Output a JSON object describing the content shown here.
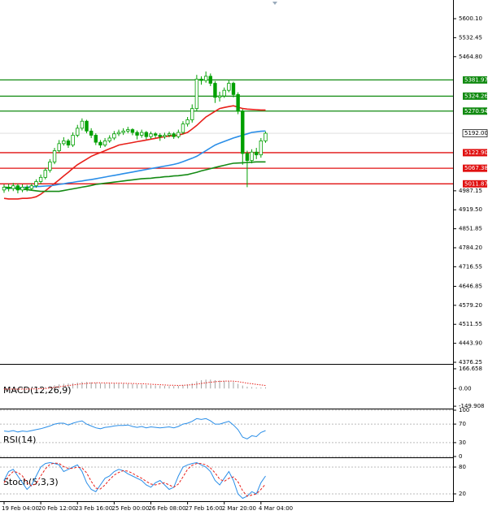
{
  "chart_data": [
    {
      "type": "candlestick",
      "categories": [
        "19 Feb 04:00",
        null,
        null,
        null,
        null,
        null,
        null,
        null,
        "20 Feb 12:00",
        null,
        null,
        null,
        null,
        null,
        null,
        null,
        "23 Feb 16:00",
        null,
        null,
        null,
        null,
        null,
        null,
        null,
        "25 Feb 00:00",
        null,
        null,
        null,
        null,
        null,
        null,
        null,
        "26 Feb 08:00",
        null,
        null,
        null,
        null,
        null,
        null,
        null,
        "27 Feb 16:00",
        null,
        null,
        null,
        null,
        null,
        null,
        null,
        "2 Mar 20:00",
        null,
        null,
        null,
        null,
        null,
        null,
        null,
        "4 Mar 04:00",
        null
      ],
      "open": [
        4990,
        5000,
        4995,
        5005,
        4990,
        5000,
        4995,
        5005,
        5020,
        5035,
        5060,
        5090,
        5130,
        5155,
        5165,
        5150,
        5185,
        5210,
        5235,
        5200,
        5185,
        5160,
        5150,
        5165,
        5175,
        5190,
        5195,
        5200,
        5205,
        5195,
        5185,
        5195,
        5180,
        5190,
        5185,
        5180,
        5185,
        5190,
        5180,
        5195,
        5225,
        5240,
        5280,
        5385,
        5380,
        5395,
        5370,
        5320,
        5325,
        5345,
        5370,
        5330,
        5270,
        5120,
        5095,
        5125,
        5115,
        5165
      ],
      "high": [
        5010,
        5012,
        5015,
        5012,
        5010,
        5008,
        5014,
        5028,
        5045,
        5068,
        5100,
        5140,
        5168,
        5178,
        5172,
        5195,
        5222,
        5245,
        5240,
        5210,
        5192,
        5168,
        5175,
        5185,
        5200,
        5205,
        5210,
        5215,
        5210,
        5202,
        5205,
        5200,
        5198,
        5196,
        5192,
        5194,
        5198,
        5196,
        5205,
        5235,
        5250,
        5295,
        5400,
        5395,
        5412,
        5405,
        5378,
        5340,
        5355,
        5380,
        5376,
        5338,
        5278,
        5130,
        5135,
        5140,
        5175,
        5198
      ],
      "low": [
        4980,
        4985,
        4986,
        4978,
        4982,
        4985,
        4988,
        4998,
        5012,
        5028,
        5052,
        5082,
        5122,
        5148,
        5140,
        5143,
        5178,
        5202,
        5192,
        5175,
        5150,
        5140,
        5143,
        5158,
        5168,
        5182,
        5186,
        5192,
        5185,
        5170,
        5176,
        5170,
        5172,
        5176,
        5165,
        5172,
        5178,
        5172,
        5174,
        5188,
        5216,
        5230,
        5272,
        5365,
        5372,
        5360,
        5300,
        5305,
        5318,
        5338,
        5320,
        5260,
        5080,
        5000,
        5085,
        5100,
        5105,
        5158
      ],
      "close": [
        5000,
        4995,
        5005,
        4990,
        5000,
        4995,
        5005,
        5020,
        5035,
        5060,
        5090,
        5130,
        5155,
        5165,
        5150,
        5185,
        5210,
        5235,
        5200,
        5185,
        5160,
        5150,
        5165,
        5175,
        5190,
        5195,
        5200,
        5205,
        5195,
        5185,
        5195,
        5180,
        5190,
        5185,
        5180,
        5185,
        5190,
        5180,
        5195,
        5225,
        5240,
        5280,
        5385,
        5380,
        5395,
        5370,
        5320,
        5325,
        5345,
        5370,
        5330,
        5270,
        5120,
        5095,
        5125,
        5115,
        5165,
        5192
      ],
      "up_color": "#ffffff",
      "down_color": "#00a000",
      "outline_color": "#00a000",
      "lines": [
        {
          "color": "#e8201a",
          "values": [
            4960,
            4958,
            4958,
            4958,
            4960,
            4960,
            4962,
            4966,
            4975,
            4987,
            5000,
            5013,
            5026,
            5040,
            5053,
            5067,
            5080,
            5090,
            5100,
            5110,
            5117,
            5123,
            5130,
            5137,
            5143,
            5150,
            5153,
            5156,
            5159,
            5162,
            5165,
            5168,
            5171,
            5174,
            5177,
            5180,
            5182,
            5184,
            5185,
            5190,
            5195,
            5207,
            5220,
            5235,
            5250,
            5260,
            5270,
            5280,
            5284,
            5287,
            5290,
            5285,
            5280,
            5278,
            5277,
            5276,
            5275,
            5275
          ]
        },
        {
          "color": "#2a8ee8",
          "values": [
            4995,
            4996,
            4997,
            4998,
            4999,
            5000,
            5001,
            5002,
            5003,
            5004,
            5005,
            5007,
            5010,
            5012,
            5015,
            5017,
            5020,
            5022,
            5025,
            5027,
            5030,
            5033,
            5036,
            5039,
            5042,
            5045,
            5048,
            5051,
            5054,
            5057,
            5060,
            5063,
            5066,
            5069,
            5072,
            5075,
            5078,
            5081,
            5085,
            5091,
            5097,
            5103,
            5110,
            5120,
            5130,
            5140,
            5150,
            5157,
            5163,
            5169,
            5175,
            5180,
            5185,
            5190,
            5195,
            5197,
            5199,
            5200
          ]
        },
        {
          "color": "#148a14",
          "values": [
            5000,
            4999,
            4997,
            4995,
            4993,
            4991,
            4989,
            4987,
            4985,
            4985,
            4985,
            4985,
            4985,
            4988,
            4991,
            4994,
            4997,
            5000,
            5003,
            5006,
            5010,
            5012,
            5014,
            5016,
            5018,
            5020,
            5022,
            5024,
            5026,
            5028,
            5030,
            5031,
            5032,
            5034,
            5035,
            5037,
            5038,
            5040,
            5041,
            5043,
            5045,
            5049,
            5053,
            5058,
            5062,
            5066,
            5070,
            5074,
            5078,
            5082,
            5085,
            5086,
            5087,
            5088,
            5089,
            5090,
            5090,
            5090
          ]
        }
      ],
      "levels": [
        {
          "value": 5381.97,
          "label": "5381.97",
          "color": "#108a10"
        },
        {
          "value": 5324.26,
          "label": "5324.26",
          "color": "#108a10"
        },
        {
          "value": 5270.94,
          "label": "5270.94",
          "color": "#108a10"
        },
        {
          "value": 5122.9,
          "label": "5122.90",
          "color": "#e01010"
        },
        {
          "value": 5067.38,
          "label": "5067.38",
          "color": "#e01010"
        },
        {
          "value": 5011.87,
          "label": "5011.87",
          "color": "#e01010"
        }
      ],
      "last_price": {
        "value": 5192,
        "label": "5192.00"
      },
      "ylim": [
        4370.5,
        5652.2
      ],
      "yticks": [
        {
          "value": 5600.1,
          "label": "5600.10"
        },
        5532.45,
        {
          "value": 5464.8,
          "label": "5464.80"
        },
        4987.15,
        {
          "value": 4919.5,
          "label": "4919.50"
        },
        4851.85,
        {
          "value": 4784.2,
          "label": "4784.20"
        },
        4716.55,
        4646.85,
        {
          "value": 4579.2,
          "label": "4579.20"
        },
        4511.55,
        {
          "value": 4443.9,
          "label": "4443.90"
        },
        4376.25
      ],
      "grid": false
    },
    {
      "type": "macd",
      "title": "MACD(12,26,9)",
      "values": [
        -5,
        -6,
        -6,
        -5,
        -4,
        -3,
        -2,
        0,
        5,
        12,
        20,
        28,
        35,
        40,
        42,
        45,
        50,
        55,
        55,
        52,
        48,
        44,
        42,
        42,
        42,
        42,
        41,
        40,
        38,
        35,
        33,
        30,
        28,
        26,
        24,
        22,
        20,
        20,
        22,
        28,
        35,
        45,
        60,
        70,
        75,
        75,
        70,
        68,
        65,
        62,
        55,
        40,
        25,
        15,
        12,
        8,
        8,
        10
      ],
      "signal": [
        -5,
        -5,
        -5,
        -5,
        -5,
        -5,
        -4,
        -3,
        -2,
        0,
        5,
        10,
        15,
        20,
        25,
        30,
        35,
        40,
        43,
        46,
        48,
        48,
        47,
        46,
        45,
        45,
        44,
        43,
        42,
        41,
        40,
        38,
        36,
        34,
        32,
        30,
        28,
        27,
        26,
        27,
        29,
        32,
        37,
        43,
        48,
        53,
        57,
        60,
        62,
        63,
        62,
        58,
        52,
        45,
        40,
        35,
        30,
        26
      ],
      "color": "#a0a0a0",
      "signal_color": "#e8201a",
      "ylim": [
        -163,
        194
      ],
      "yticks": [
        166.658,
        {
          "value": 0,
          "label": "0.00"
        },
        -149.908
      ],
      "grid": false
    },
    {
      "type": "line",
      "title": "RSI(14)",
      "values": [
        55,
        54,
        56,
        53,
        55,
        54,
        56,
        58,
        60,
        63,
        66,
        70,
        72,
        72,
        68,
        72,
        75,
        77,
        70,
        66,
        62,
        60,
        63,
        64,
        66,
        67,
        67,
        68,
        65,
        63,
        65,
        62,
        64,
        63,
        62,
        63,
        64,
        62,
        65,
        70,
        72,
        76,
        82,
        80,
        82,
        77,
        70,
        70,
        73,
        76,
        68,
        58,
        42,
        38,
        45,
        43,
        52,
        56
      ],
      "color": "#2a8ee8",
      "ylim": [
        0,
        100
      ],
      "yticks": [
        100,
        70,
        30,
        0
      ],
      "grid": true
    },
    {
      "type": "stoch",
      "title": "Stoch(5,3,3)",
      "values": [
        50,
        70,
        75,
        60,
        45,
        30,
        40,
        60,
        80,
        88,
        90,
        88,
        85,
        70,
        75,
        80,
        85,
        70,
        45,
        30,
        25,
        40,
        55,
        60,
        70,
        75,
        72,
        65,
        60,
        55,
        50,
        40,
        35,
        45,
        50,
        40,
        30,
        35,
        60,
        80,
        85,
        88,
        90,
        85,
        80,
        70,
        50,
        40,
        55,
        70,
        50,
        20,
        10,
        15,
        25,
        20,
        45,
        60
      ],
      "signal": [
        45,
        60,
        70,
        68,
        60,
        45,
        38,
        43,
        60,
        76,
        86,
        89,
        88,
        81,
        77,
        77,
        80,
        78,
        67,
        48,
        33,
        31,
        40,
        52,
        62,
        68,
        72,
        71,
        66,
        60,
        55,
        48,
        42,
        40,
        43,
        45,
        40,
        35,
        42,
        58,
        75,
        84,
        88,
        88,
        85,
        78,
        67,
        53,
        48,
        55,
        58,
        47,
        27,
        15,
        17,
        20,
        30,
        42
      ],
      "color": "#2a8ee8",
      "signal_color": "#e8201a",
      "ylim": [
        0,
        100
      ],
      "yticks": [
        80,
        20
      ],
      "grid": true
    }
  ]
}
